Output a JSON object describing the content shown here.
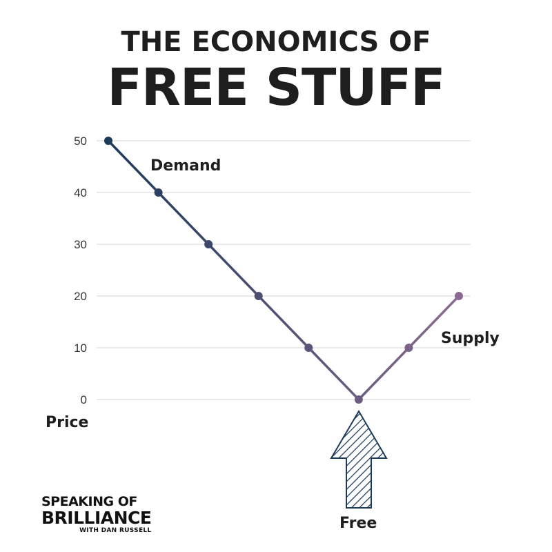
{
  "header": {
    "title_line1": "THE ECONOMICS OF",
    "title_line2": "FREE STUFF"
  },
  "labels": {
    "demand": "Demand",
    "supply": "Supply",
    "price": "Price",
    "free": "Free"
  },
  "logo": {
    "line1": "SPEAKING OF",
    "line2": "BRILLIANCE",
    "line3": "WITH DAN RUSSELL"
  },
  "chart_data": {
    "type": "line",
    "x": [
      1,
      2,
      3,
      4,
      5,
      6,
      7,
      8
    ],
    "series": [
      {
        "values": [
          50,
          40,
          30,
          20,
          10,
          0,
          10,
          20
        ]
      }
    ],
    "yticks": [
      0,
      10,
      20,
      30,
      40,
      50
    ],
    "ylim": [
      0,
      50
    ],
    "grid": true,
    "colors": {
      "start": "#1c3a5a",
      "end": "#8a6a92",
      "grid": "#d3d3d3"
    }
  }
}
